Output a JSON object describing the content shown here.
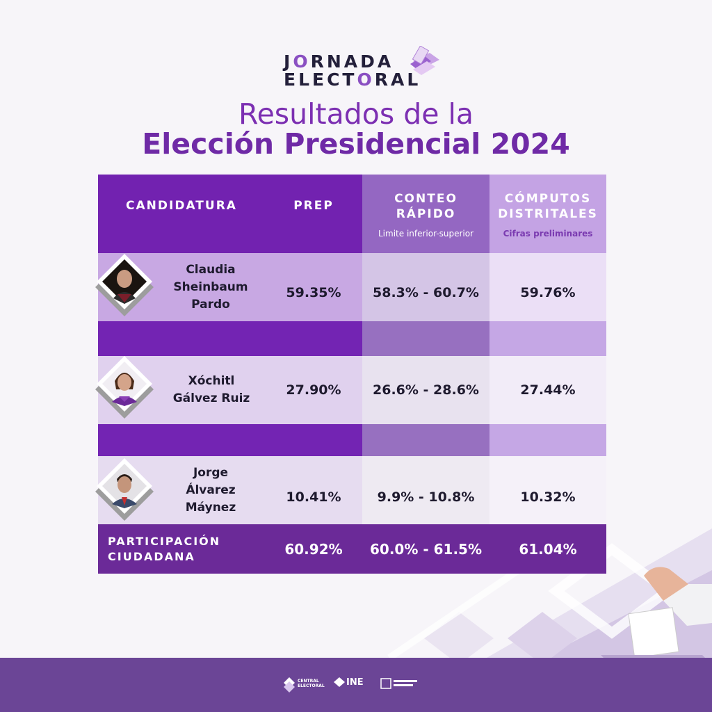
{
  "logo": {
    "line1_pre": "J",
    "line1_o": "O",
    "line1_post": "RNADA",
    "line2_pre": "ELECT",
    "line2_o": "O",
    "line2_post": "RAL"
  },
  "title": {
    "line1": "Resultados de la",
    "line2": "Elección Presidencial 2024"
  },
  "table": {
    "headers": {
      "candidatura": "CANDIDATURA",
      "prep": "PREP",
      "conteo": "CONTEO RÁPIDO",
      "conteo_sub": "Limite inferior-superior",
      "computos": "CÓMPUTOS DISTRITALES",
      "computos_sub": "Cifras preliminares"
    },
    "rows": [
      {
        "name": "Claudia Sheinbaum Pardo",
        "prep": "59.35%",
        "conteo": "58.3% - 60.7%",
        "computos": "59.76%"
      },
      {
        "name": "Xóchitl Gálvez Ruiz",
        "prep": "27.90%",
        "conteo": "26.6% - 28.6%",
        "computos": "27.44%"
      },
      {
        "name": "Jorge Álvarez Máynez",
        "prep": "10.41%",
        "conteo": "9.9% - 10.8%",
        "computos": "10.32%"
      }
    ],
    "footer": {
      "label": "PARTICIPACIÓN CIUDADANA",
      "prep": "60.92%",
      "conteo": "60.0% - 61.5%",
      "computos": "61.04%"
    }
  },
  "footer_logos": {
    "central": "CENTRAL ELECTORAL",
    "ine": "INE"
  },
  "colors": {
    "primary": "#7222b0",
    "header_light": "#9467c2",
    "header_lighter": "#c4a3e4",
    "dark_footer": "#6b2a98"
  }
}
